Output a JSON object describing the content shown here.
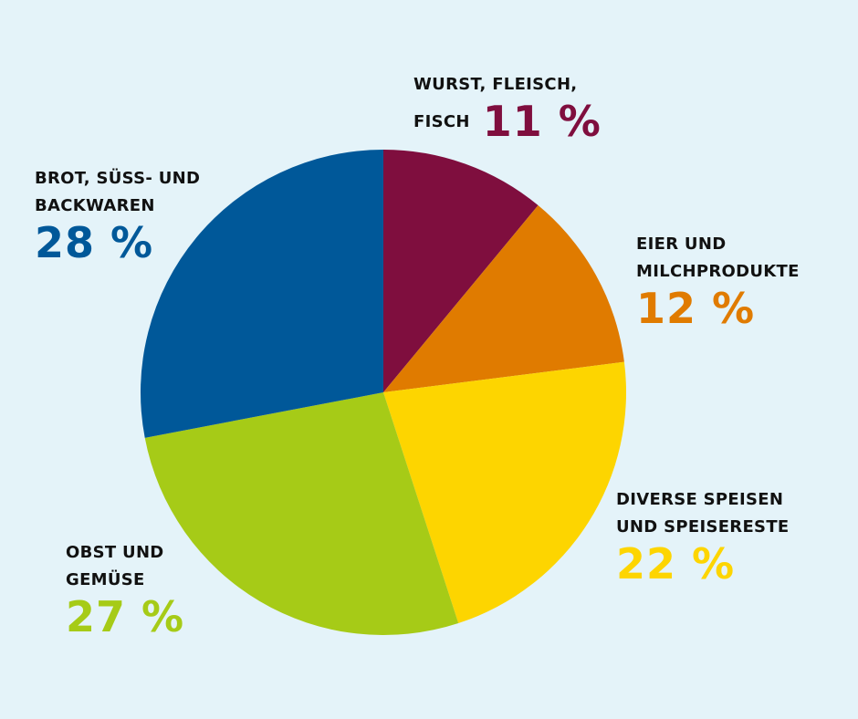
{
  "chart_data": {
    "type": "pie",
    "start": "top",
    "direction": "clockwise",
    "legend": "none",
    "slices": [
      {
        "label_lines": [
          "WURST, FLEISCH,",
          "FISCH"
        ],
        "value": 11,
        "display": "11 %",
        "color": "#7f0e3e"
      },
      {
        "label_lines": [
          "EIER UND",
          "MILCHPRODUKTE"
        ],
        "value": 12,
        "display": "12 %",
        "color": "#e07b00"
      },
      {
        "label_lines": [
          "DIVERSE SPEISEN",
          "UND SPEISERESTE"
        ],
        "value": 22,
        "display": "22 %",
        "color": "#fdd500"
      },
      {
        "label_lines": [
          "OBST UND",
          "GEMÜSE"
        ],
        "value": 27,
        "display": "27 %",
        "color": "#a6cb17"
      },
      {
        "label_lines": [
          "BROT, SÜSS- UND",
          "BACKWAREN"
        ],
        "value": 28,
        "display": "28 %",
        "color": "#005899"
      }
    ]
  }
}
